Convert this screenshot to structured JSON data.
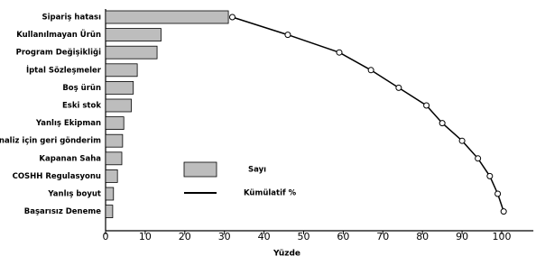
{
  "chart_data": {
    "type": "bar",
    "orientation": "horizontal",
    "categories": [
      "Sipariş hatası",
      "Kullanılmayan Ürün",
      "Program Değişikliği",
      "İptal Sözleşmeler",
      "Boş ürün",
      "Eski stok",
      "Yanlış Ekipman",
      "Analiz için geri gönderim",
      "Kapanan Saha",
      "COSHH Regulasyonu",
      "Yanlış boyut",
      "Başarısız Deneme"
    ],
    "series": [
      {
        "name": "Sayı",
        "type": "bar",
        "color": "#bdbdbd",
        "values": [
          31,
          14,
          13,
          8,
          7,
          6.5,
          4.6,
          4.3,
          4.1,
          3,
          2,
          1.8
        ]
      },
      {
        "name": "Kümülatif %",
        "type": "line",
        "color": "#000000",
        "values": [
          32,
          46,
          59,
          67,
          74,
          81,
          85,
          90,
          94,
          97,
          99,
          100.5
        ]
      }
    ],
    "x_label": "Yüzde",
    "xlim": [
      0,
      108
    ],
    "xticks": [
      0,
      10,
      20,
      30,
      40,
      50,
      60,
      70,
      80,
      90,
      100
    ]
  }
}
